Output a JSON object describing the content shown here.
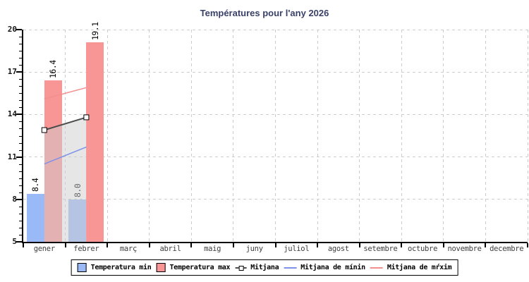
{
  "chart_data": {
    "type": "bar",
    "title": "Températures pour l'any 2026",
    "categories": [
      "gener",
      "febrer",
      "març",
      "abril",
      "maig",
      "juny",
      "juliol",
      "agost",
      "setembre",
      "octubre",
      "novembre",
      "decembre"
    ],
    "series": [
      {
        "name": "Temperatura min",
        "type": "bar",
        "color": "#9abaf7",
        "values": [
          8.4,
          8.0,
          null,
          null,
          null,
          null,
          null,
          null,
          null,
          null,
          null,
          null
        ]
      },
      {
        "name": "Temperatura max",
        "type": "bar",
        "color": "#f89595",
        "values": [
          16.4,
          19.1,
          null,
          null,
          null,
          null,
          null,
          null,
          null,
          null,
          null,
          null
        ]
      },
      {
        "name": "Mitjana",
        "type": "area-line",
        "line_color": "#4d4d4d",
        "fill_color": "rgba(205,205,205,0.5)",
        "marker": "white-square",
        "values": [
          12.9,
          13.8,
          null,
          null,
          null,
          null,
          null,
          null,
          null,
          null,
          null,
          null
        ]
      },
      {
        "name": "Mitjana de mínin",
        "type": "line",
        "color": "#7d91e8",
        "values": [
          10.5,
          11.7,
          null,
          null,
          null,
          null,
          null,
          null,
          null,
          null,
          null,
          null
        ]
      },
      {
        "name": "Mitjana de mŕxim",
        "type": "line",
        "color": "#f28e8e",
        "values": [
          15.1,
          15.9,
          null,
          null,
          null,
          null,
          null,
          null,
          null,
          null,
          null,
          null
        ]
      }
    ],
    "xlabel": "",
    "ylabel": "",
    "ylim": [
      5,
      20
    ],
    "yticks": [
      5,
      8,
      11,
      14,
      17,
      20
    ],
    "y_minor_step": 0.5,
    "grid": true,
    "legend_position": "bottom",
    "value_label_format": "1-decimal"
  }
}
